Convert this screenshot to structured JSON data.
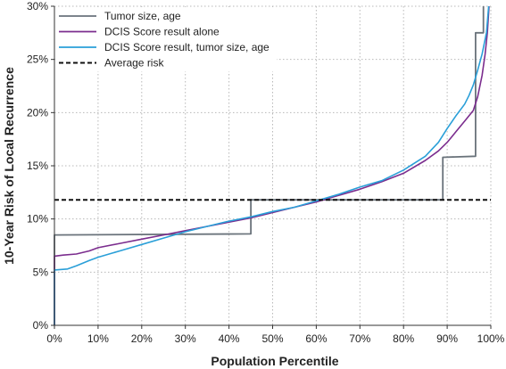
{
  "chart_data": {
    "type": "line",
    "xlabel": "Population Percentile",
    "ylabel": "10-Year Risk of Local Recurrence",
    "xlim": [
      0,
      100
    ],
    "ylim": [
      0,
      30
    ],
    "x_ticks": [
      0,
      10,
      20,
      30,
      40,
      50,
      60,
      70,
      80,
      90,
      100
    ],
    "y_ticks": [
      0,
      5,
      10,
      15,
      20,
      25,
      30
    ],
    "x_tick_labels": [
      "0%",
      "10%",
      "20%",
      "30%",
      "40%",
      "50%",
      "60%",
      "70%",
      "80%",
      "90%",
      "100%"
    ],
    "y_tick_labels": [
      "0%",
      "5%",
      "10%",
      "15%",
      "20%",
      "25%",
      "30%"
    ],
    "grid": "dotted",
    "legend_position": "top-left",
    "series": [
      {
        "name": "Tumor size, age",
        "color": "#6a737b",
        "style": "step",
        "x": [
          0,
          0,
          45,
          45,
          89,
          89,
          96.5,
          96.5,
          98.3,
          98.3
        ],
        "y": [
          0,
          8.5,
          8.6,
          11.8,
          11.8,
          15.8,
          15.9,
          27.5,
          27.5,
          30
        ]
      },
      {
        "name": "DCIS Score result alone",
        "color": "#7b2d8e",
        "style": "line",
        "x": [
          0,
          0,
          2,
          5,
          8,
          10,
          15,
          20,
          25,
          30,
          35,
          40,
          45,
          50,
          55,
          60,
          65,
          70,
          75,
          80,
          85,
          88,
          90,
          92,
          94,
          96,
          97,
          98,
          98.7,
          99.2,
          99.6
        ],
        "y": [
          0,
          6.5,
          6.6,
          6.7,
          7.0,
          7.3,
          7.7,
          8.1,
          8.5,
          8.9,
          9.3,
          9.7,
          10.1,
          10.6,
          11.1,
          11.6,
          12.2,
          12.8,
          13.5,
          14.3,
          15.5,
          16.4,
          17.2,
          18.2,
          19.2,
          20.2,
          21.5,
          23.5,
          25.5,
          27.5,
          30
        ]
      },
      {
        "name": "DCIS Score result, tumor size, age",
        "color": "#2a9fd8",
        "style": "line",
        "x": [
          0,
          0,
          3,
          5,
          8,
          10,
          15,
          20,
          25,
          30,
          35,
          40,
          45,
          50,
          55,
          60,
          65,
          70,
          75,
          80,
          85,
          88,
          90,
          92,
          94,
          95,
          96,
          97,
          98,
          99,
          99.5
        ],
        "y": [
          0,
          5.2,
          5.3,
          5.6,
          6.1,
          6.4,
          7.0,
          7.6,
          8.2,
          8.8,
          9.3,
          9.8,
          10.2,
          10.7,
          11.1,
          11.7,
          12.3,
          13.0,
          13.6,
          14.6,
          15.9,
          17.2,
          18.5,
          19.7,
          20.8,
          21.6,
          22.6,
          24.0,
          25.5,
          27.5,
          30
        ]
      },
      {
        "name": "Average risk",
        "color": "#111111",
        "style": "dashed",
        "x": [
          0,
          100
        ],
        "y": [
          11.8,
          11.8
        ]
      }
    ]
  }
}
